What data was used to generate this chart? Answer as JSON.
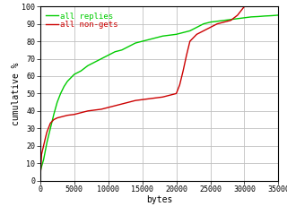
{
  "title": "",
  "xlabel": "bytes",
  "ylabel": "cumulative %",
  "xlim": [
    0,
    35000
  ],
  "ylim": [
    0,
    100
  ],
  "xticks": [
    0,
    5000,
    10000,
    15000,
    20000,
    25000,
    30000,
    35000
  ],
  "yticks": [
    0,
    10,
    20,
    30,
    40,
    50,
    60,
    70,
    80,
    90,
    100
  ],
  "background_color": "#ffffff",
  "grid_color": "#c0c0c0",
  "legend_labels": [
    "all replies",
    "all non-gets"
  ],
  "legend_colors": [
    "#00cc00",
    "#cc0000"
  ],
  "green_x": [
    0,
    200,
    500,
    800,
    1000,
    1500,
    2000,
    2500,
    3000,
    3500,
    4000,
    4500,
    5000,
    6000,
    7000,
    8000,
    9000,
    10000,
    11000,
    12000,
    13000,
    14000,
    15000,
    16000,
    17000,
    18000,
    19000,
    20000,
    21000,
    22000,
    23000,
    24000,
    25000,
    26000,
    27000,
    28000,
    29000,
    30000,
    31000,
    32000,
    33000,
    34000,
    35000
  ],
  "green_y": [
    5,
    8,
    12,
    18,
    22,
    30,
    38,
    45,
    50,
    54,
    57,
    59,
    61,
    63,
    66,
    68,
    70,
    72,
    74,
    75,
    77,
    79,
    80,
    81,
    82,
    83,
    83.5,
    84,
    85,
    86,
    88,
    90,
    91,
    91.5,
    92,
    92.5,
    93,
    93.5,
    94,
    94.2,
    94.5,
    94.7,
    95
  ],
  "red_x": [
    0,
    200,
    500,
    800,
    1000,
    1500,
    2000,
    2500,
    3000,
    3500,
    4000,
    5000,
    6000,
    7000,
    8000,
    9000,
    10000,
    11000,
    12000,
    13000,
    14000,
    15000,
    16000,
    17000,
    18000,
    19000,
    20000,
    20500,
    21000,
    21500,
    22000,
    23000,
    24000,
    25000,
    26000,
    27000,
    28000,
    29000,
    30000,
    31000,
    32000,
    33000,
    34000,
    35000
  ],
  "red_y": [
    0,
    15,
    20,
    25,
    28,
    33,
    35,
    36,
    36.5,
    37,
    37.5,
    38,
    39,
    40,
    40.5,
    41,
    42,
    43,
    44,
    45,
    46,
    46.5,
    47,
    47.5,
    48,
    49,
    50,
    55,
    63,
    72,
    80,
    84,
    86,
    88,
    90,
    91,
    92,
    95,
    100,
    100,
    100,
    100,
    100,
    100
  ],
  "tick_fontsize": 6,
  "label_fontsize": 7
}
